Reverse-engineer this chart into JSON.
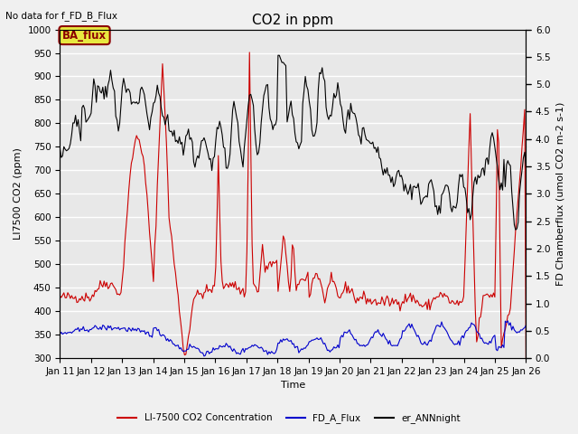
{
  "title": "CO2 in ppm",
  "top_left_text": "No data for f_FD_B_Flux",
  "box_label": "BA_flux",
  "xlabel": "Time",
  "ylabel_left": "LI7500 CO2 (ppm)",
  "ylabel_right": "FD Chamberflux (umol CO2 m-2 s-1)",
  "ylim_left": [
    300,
    1000
  ],
  "ylim_right": [
    0.0,
    6.0
  ],
  "yticks_left": [
    300,
    350,
    400,
    450,
    500,
    550,
    600,
    650,
    700,
    750,
    800,
    850,
    900,
    950,
    1000
  ],
  "yticks_right": [
    0.0,
    0.5,
    1.0,
    1.5,
    2.0,
    2.5,
    3.0,
    3.5,
    4.0,
    4.5,
    5.0,
    5.5,
    6.0
  ],
  "xtick_labels": [
    "Jan 11",
    "Jan 12",
    "Jan 13",
    "Jan 14",
    "Jan 15",
    "Jan 16",
    "Jan 17",
    "Jan 18",
    "Jan 19",
    "Jan 20",
    "Jan 21",
    "Jan 22",
    "Jan 23",
    "Jan 24",
    "Jan 25",
    "Jan 26"
  ],
  "legend_entries": [
    {
      "label": "LI-7500 CO2 Concentration",
      "color": "#cc0000",
      "linestyle": "-"
    },
    {
      "label": "FD_A_Flux",
      "color": "#0000cc",
      "linestyle": "-"
    },
    {
      "label": "er_ANNnight",
      "color": "#000000",
      "linestyle": "-"
    }
  ],
  "background_color": "#e8e8e8",
  "grid_color": "#ffffff",
  "box_facecolor": "#e8e840",
  "box_edgecolor": "#8b0000",
  "title_fontsize": 11,
  "label_fontsize": 8,
  "tick_fontsize": 7.5,
  "n_days": 15,
  "n_pts": 360
}
